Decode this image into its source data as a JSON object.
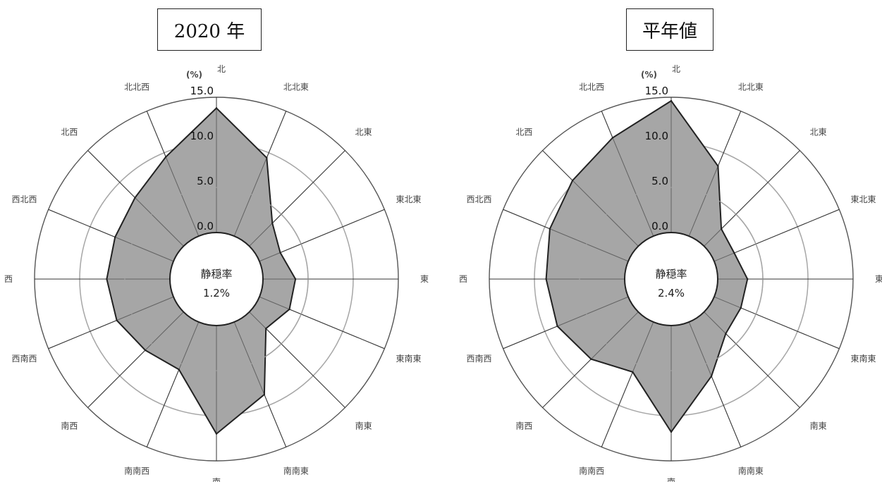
{
  "chart_data": [
    {
      "type": "radar",
      "title": "2020 年",
      "unit_label": "(%)",
      "categories": [
        "北",
        "北北東",
        "北東",
        "東北東",
        "東",
        "東南東",
        "南東",
        "南南東",
        "南",
        "南南西",
        "南西",
        "西南西",
        "西",
        "西北西",
        "北西",
        "北北西"
      ],
      "values": [
        13.8,
        9.4,
        3.6,
        2.5,
        3.6,
        3.6,
        2.6,
        8.7,
        12.0,
        5.7,
        6.0,
        6.8,
        7.0,
        7.0,
        7.6,
        9.5
      ],
      "rlim": [
        0,
        15
      ],
      "rticks": [
        "0.0",
        "5.0",
        "10.0",
        "15.0"
      ],
      "center_label": "静穏率",
      "center_value": "1.2%"
    },
    {
      "type": "radar",
      "title": "平年値",
      "unit_label": "(%)",
      "categories": [
        "北",
        "北北東",
        "北東",
        "東北東",
        "東",
        "東南東",
        "南東",
        "南南東",
        "南",
        "南南西",
        "南西",
        "西南西",
        "西",
        "西北西",
        "北西",
        "北北西"
      ],
      "values": [
        14.6,
        8.4,
        2.7,
        2.4,
        3.3,
        3.2,
        3.4,
        6.5,
        11.8,
        6.0,
        7.4,
        8.5,
        8.7,
        9.4,
        10.3,
        11.8
      ],
      "rlim": [
        0,
        15
      ],
      "rticks": [
        "0.0",
        "5.0",
        "10.0",
        "15.0"
      ],
      "center_label": "静穏率",
      "center_value": "2.4%"
    }
  ]
}
